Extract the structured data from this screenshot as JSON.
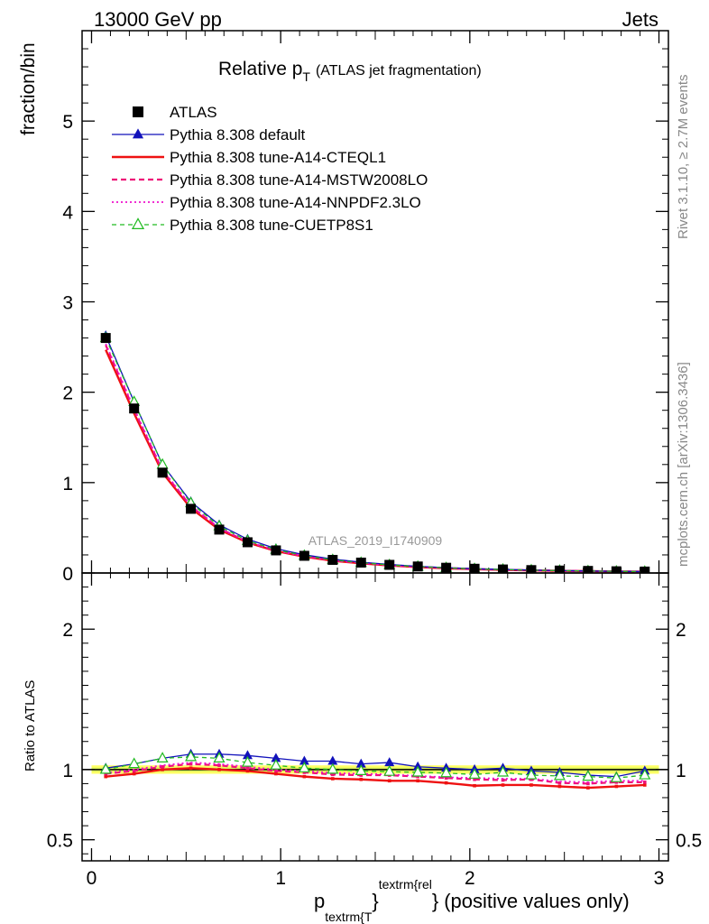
{
  "header": {
    "left": "13000 GeV pp",
    "right": "Jets"
  },
  "side_labels": {
    "rivet": "Rivet 3.1.10, ≥ 2.7M events",
    "mcplots": "mcplots.cern.ch [arXiv:1306.3436]"
  },
  "chart_data": {
    "type": "line",
    "title": "Relative p",
    "title_sub": "T",
    "title_note": "(ATLAS jet fragmentation)",
    "watermark": "ATLAS_2019_I1740909",
    "xlabel": "p",
    "xlabel_sub": "textrm{T",
    "xlabel_sup": "textrm{rel",
    "xlabel_brace": "}",
    "xlabel_brace2": "}",
    "xlabel_tail": "(positive values only)",
    "ylabel_main": "fraction/bin",
    "ylabel_ratio": "Ratio to ATLAS",
    "xlim": [
      -0.05,
      3.05
    ],
    "ylim_main": [
      0,
      6
    ],
    "ylim_ratio": [
      0.35,
      2.4
    ],
    "xticks": [
      0,
      1,
      2,
      3
    ],
    "xtick_labels": [
      "0",
      "1",
      "2",
      "3"
    ],
    "yticks_main": [
      0,
      1,
      2,
      3,
      4,
      5
    ],
    "ytick_labels_main": [
      "0",
      "1",
      "2",
      "3",
      "4",
      "5"
    ],
    "yticks_ratio": [
      0.5,
      1,
      2
    ],
    "ytick_labels_ratio": [
      "0.5",
      "1",
      "2"
    ],
    "band_color": "#ffff66",
    "band_halfwidth": 0.03,
    "x": [
      0.075,
      0.225,
      0.375,
      0.525,
      0.675,
      0.825,
      0.975,
      1.125,
      1.275,
      1.425,
      1.575,
      1.725,
      1.875,
      2.025,
      2.175,
      2.325,
      2.475,
      2.625,
      2.775,
      2.925
    ],
    "series": [
      {
        "name": "ATLAS",
        "color": "#000000",
        "values": [
          2.6,
          1.82,
          1.11,
          0.71,
          0.48,
          0.34,
          0.25,
          0.19,
          0.145,
          0.115,
          0.09,
          0.072,
          0.058,
          0.047,
          0.039,
          0.032,
          0.027,
          0.023,
          0.019,
          0.016
        ],
        "ratio": [
          1,
          1,
          1,
          1,
          1,
          1,
          1,
          1,
          1,
          1,
          1,
          1,
          1,
          1,
          1,
          1,
          1,
          1,
          1,
          1
        ]
      },
      {
        "name": "Pythia 8.308 default",
        "color": "#1111bb",
        "ratio": [
          1.01,
          1.04,
          1.08,
          1.11,
          1.11,
          1.1,
          1.08,
          1.06,
          1.06,
          1.04,
          1.05,
          1.02,
          1.01,
          1.0,
          1.01,
          0.99,
          0.98,
          0.96,
          0.95,
          0.99
        ]
      },
      {
        "name": "Pythia 8.308 tune-A14-CTEQL1",
        "color": "#ee1111",
        "ratio": [
          0.95,
          0.97,
          1.0,
          1.01,
          1.0,
          0.99,
          0.97,
          0.95,
          0.935,
          0.93,
          0.92,
          0.92,
          0.905,
          0.885,
          0.89,
          0.89,
          0.88,
          0.87,
          0.88,
          0.89
        ]
      },
      {
        "name": "Pythia 8.308 tune-A14-MSTW2008LO",
        "color": "#ee1177",
        "ratio": [
          0.97,
          0.99,
          1.02,
          1.04,
          1.03,
          1.01,
          0.99,
          0.98,
          0.965,
          0.96,
          0.96,
          0.95,
          0.94,
          0.93,
          0.925,
          0.93,
          0.905,
          0.9,
          0.91,
          0.91
        ]
      },
      {
        "name": "Pythia 8.308 tune-A14-NNPDF2.3LO",
        "color": "#ee11cc",
        "ratio": [
          0.975,
          1.0,
          1.03,
          1.05,
          1.04,
          1.02,
          1.0,
          0.99,
          0.975,
          0.97,
          0.965,
          0.955,
          0.945,
          0.94,
          0.935,
          0.935,
          0.915,
          0.91,
          0.92,
          0.92
        ]
      },
      {
        "name": "Pythia 8.308 tune-CUETP8S1",
        "color": "#22bb22",
        "ratio": [
          1.0,
          1.04,
          1.08,
          1.09,
          1.08,
          1.05,
          1.03,
          1.01,
          1.0,
          0.99,
          0.985,
          0.98,
          0.975,
          0.965,
          0.98,
          0.96,
          0.955,
          0.95,
          0.94,
          0.96
        ]
      }
    ]
  }
}
